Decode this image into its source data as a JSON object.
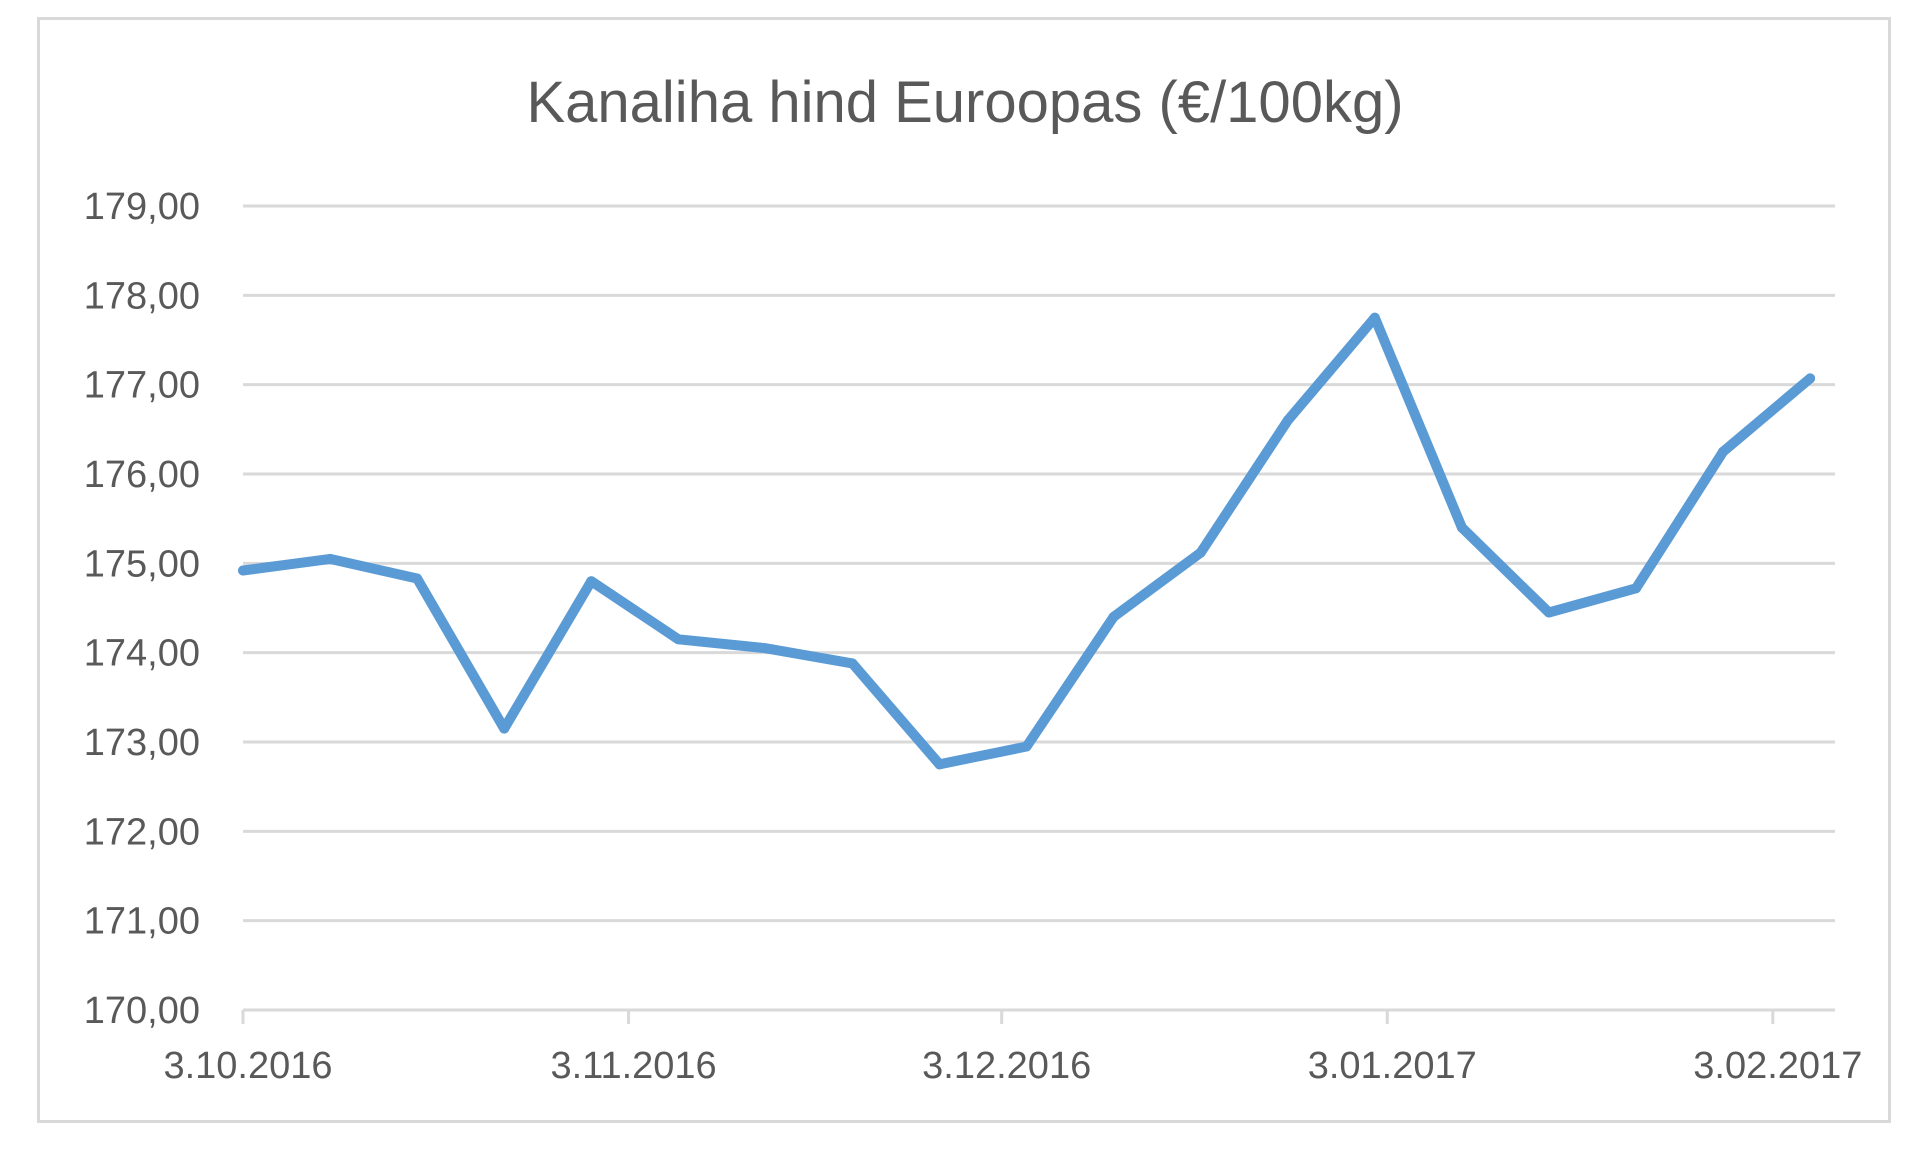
{
  "chart_data": {
    "type": "line",
    "title": "Kanaliha hind Euroopas (€/100kg)",
    "xlabel": "",
    "ylabel": "",
    "ylim": [
      170,
      179
    ],
    "y_ticks": [
      "170,00",
      "171,00",
      "172,00",
      "173,00",
      "174,00",
      "175,00",
      "176,00",
      "177,00",
      "178,00",
      "179,00"
    ],
    "x_tick_labels": [
      "3.10.2016",
      "3.11.2016",
      "3.12.2016",
      "3.01.2017",
      "3.02.2017"
    ],
    "x_range": [
      "2016-10-03",
      "2017-02-08"
    ],
    "grid": true,
    "legend": "none",
    "series": [
      {
        "color": "#5b9bd5",
        "points": [
          {
            "x": "2016-10-03",
            "y": 174.92
          },
          {
            "x": "2016-10-10",
            "y": 175.05
          },
          {
            "x": "2016-10-17",
            "y": 174.83
          },
          {
            "x": "2016-10-24",
            "y": 173.15
          },
          {
            "x": "2016-10-31",
            "y": 174.8
          },
          {
            "x": "2016-11-07",
            "y": 174.15
          },
          {
            "x": "2016-11-14",
            "y": 174.05
          },
          {
            "x": "2016-11-21",
            "y": 173.88
          },
          {
            "x": "2016-11-28",
            "y": 172.75
          },
          {
            "x": "2016-12-05",
            "y": 172.95
          },
          {
            "x": "2016-12-12",
            "y": 174.4
          },
          {
            "x": "2016-12-19",
            "y": 175.12
          },
          {
            "x": "2016-12-26",
            "y": 176.6
          },
          {
            "x": "2017-01-02",
            "y": 177.75
          },
          {
            "x": "2017-01-09",
            "y": 175.4
          },
          {
            "x": "2017-01-16",
            "y": 174.45
          },
          {
            "x": "2017-01-23",
            "y": 174.72
          },
          {
            "x": "2017-01-30",
            "y": 176.25
          },
          {
            "x": "2017-02-06",
            "y": 177.07
          }
        ]
      }
    ]
  }
}
